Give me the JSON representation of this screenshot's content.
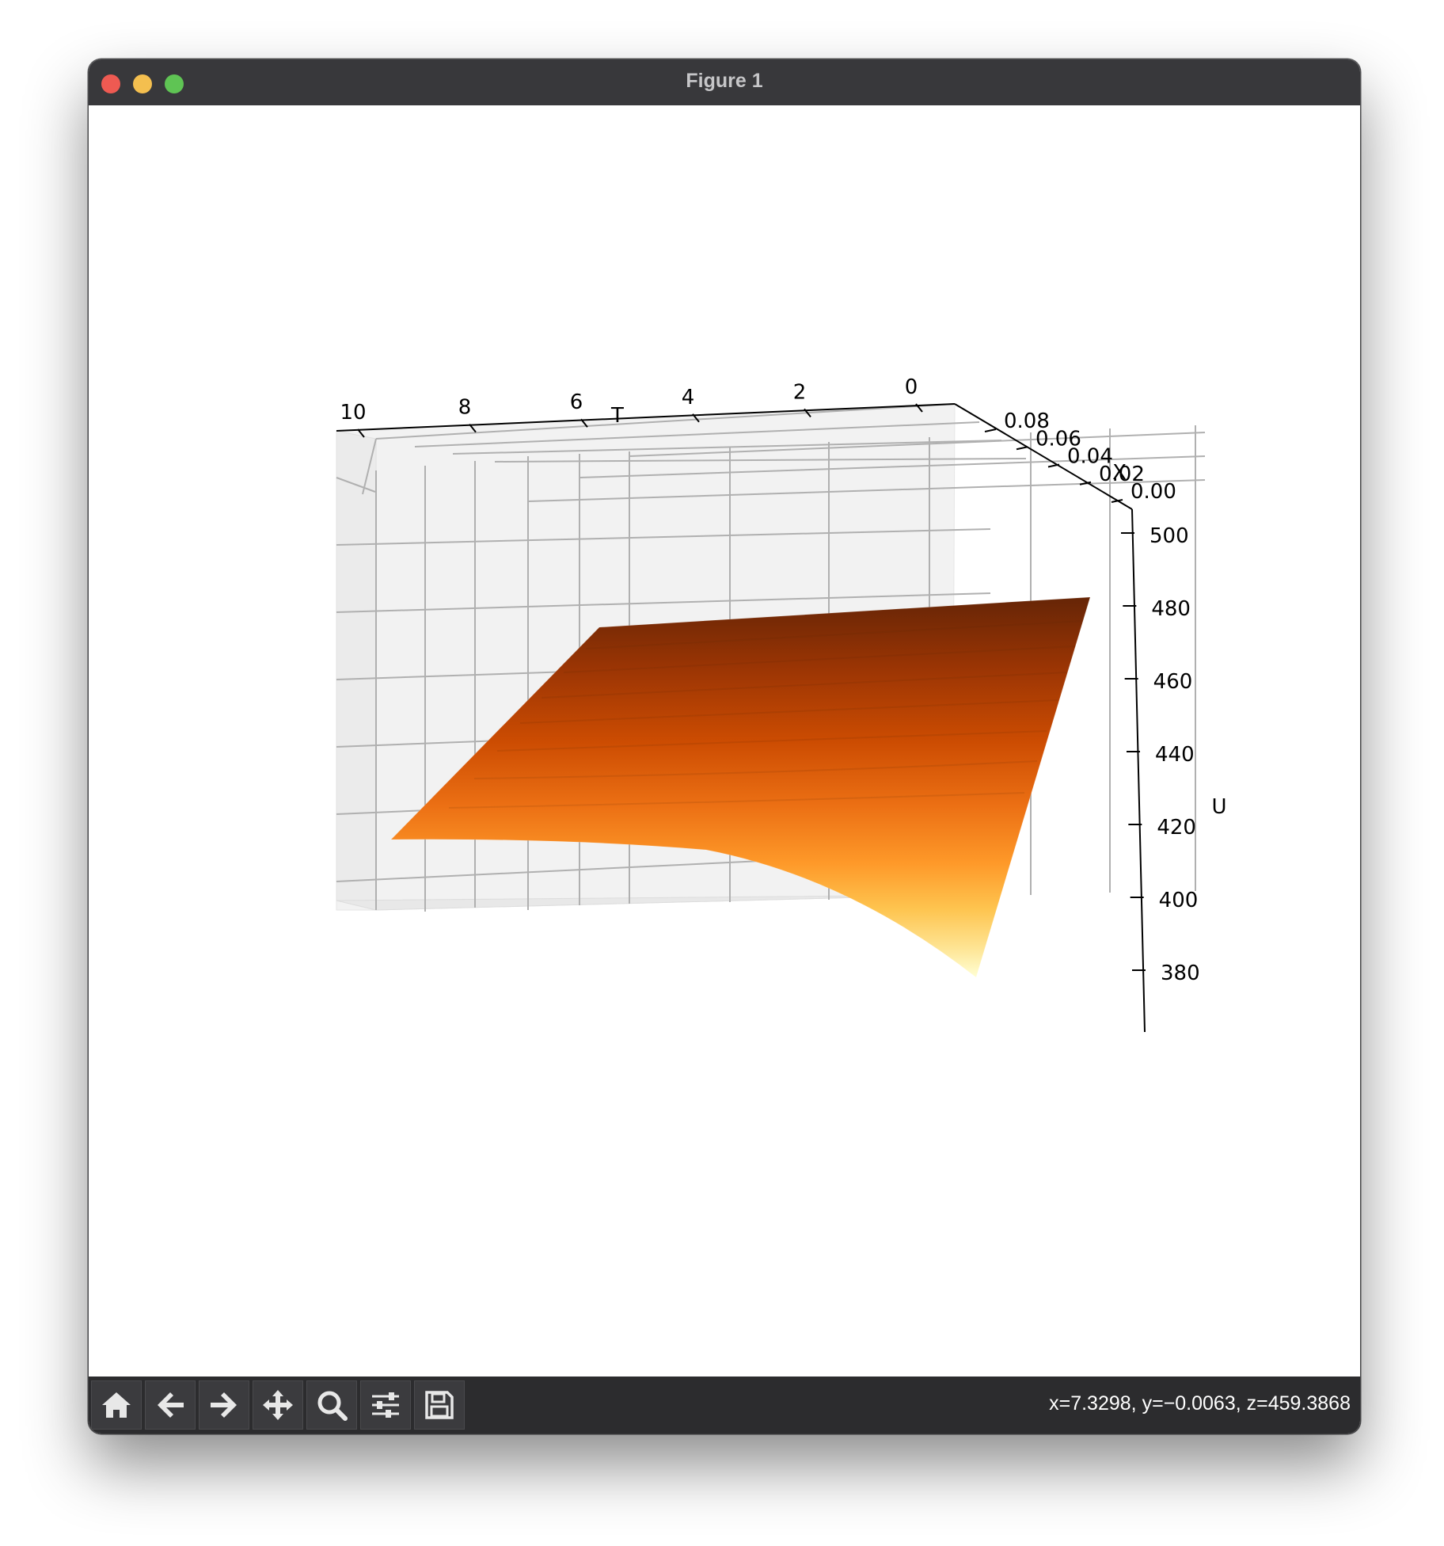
{
  "window": {
    "title": "Figure 1"
  },
  "toolbar": {
    "buttons": [
      {
        "name": "home",
        "icon": "home-icon"
      },
      {
        "name": "back",
        "icon": "arrow-left-icon"
      },
      {
        "name": "forward",
        "icon": "arrow-right-icon"
      },
      {
        "name": "pan",
        "icon": "move-icon"
      },
      {
        "name": "zoom",
        "icon": "magnifier-icon"
      },
      {
        "name": "configure",
        "icon": "sliders-icon"
      },
      {
        "name": "save",
        "icon": "floppy-disk-icon"
      }
    ],
    "coords": "x=7.3298, y=−0.0063, z=459.3868"
  },
  "chart_data": {
    "type": "surface",
    "colormap": "YlOrBr",
    "xlabel": "T",
    "ylabel": "X",
    "zlabel": "U",
    "t_ticks": [
      "10",
      "8",
      "6",
      "4",
      "2",
      "0"
    ],
    "x_ticks": [
      "0.08",
      "0.06",
      "0.04",
      "0.02",
      "0.00"
    ],
    "u_ticks": [
      "500",
      "480",
      "460",
      "440",
      "420",
      "400",
      "380"
    ],
    "t_range": [
      0,
      10
    ],
    "x_range": [
      0,
      0.09
    ],
    "u_range": [
      365,
      505
    ],
    "surface_corners": [
      {
        "t": 10,
        "x": 0.09,
        "u": 500
      },
      {
        "t": 0,
        "x": 0.09,
        "u": 500
      },
      {
        "t": 10,
        "x": 0.0,
        "u": 420
      },
      {
        "t": 0,
        "x": 0.0,
        "u": 375
      }
    ],
    "grid": true
  }
}
